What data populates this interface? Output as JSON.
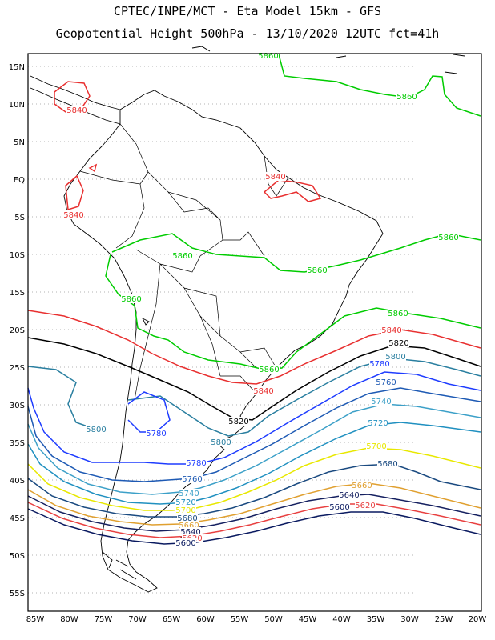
{
  "header": {
    "line1": "CPTEC/INPE/MCT -  Eta Model 15km - GFS",
    "line2": "Geopotential Height 500hPa - 13/10/2020 12UTC fct=41h"
  },
  "axes": {
    "lat_labels": [
      "15N",
      "10N",
      "5N",
      "EQ",
      "5S",
      "10S",
      "15S",
      "20S",
      "25S",
      "30S",
      "35S",
      "40S",
      "45S",
      "50S",
      "55S"
    ],
    "lon_labels": [
      "85W",
      "80W",
      "75W",
      "70W",
      "65W",
      "60W",
      "55W",
      "50W",
      "45W",
      "40W",
      "35W",
      "30W",
      "25W",
      "20W"
    ]
  },
  "colors": {
    "c5860": "#00cc00",
    "c5840": "#e83030",
    "c5820": "#000000",
    "c5800": "#2a7fa0",
    "c5780": "#1e3cff",
    "c5760": "#1e5ab4",
    "c5740": "#3ca0c8",
    "c5720": "#2090c0",
    "c5700": "#e8e800",
    "c5680": "#1a4a80",
    "c5660": "#e0a030",
    "c5640": "#152060",
    "c5620": "#e84040",
    "c5600": "#0a1a60",
    "land": "#000000",
    "grid": "#9a9a9a"
  },
  "contour_labels": [
    {
      "text": "5860",
      "color": "#00cc00"
    },
    {
      "text": "5860",
      "color": "#00cc00"
    },
    {
      "text": "5860",
      "color": "#00cc00"
    },
    {
      "text": "5860",
      "color": "#00cc00"
    },
    {
      "text": "5860",
      "color": "#00cc00"
    },
    {
      "text": "5860",
      "color": "#00cc00"
    },
    {
      "text": "5860",
      "color": "#00cc00"
    },
    {
      "text": "5860",
      "color": "#00cc00"
    },
    {
      "text": "5840",
      "color": "#e83030"
    },
    {
      "text": "5840",
      "color": "#e83030"
    },
    {
      "text": "5840",
      "color": "#e83030"
    },
    {
      "text": "5840",
      "color": "#e83030"
    },
    {
      "text": "5840",
      "color": "#e83030"
    },
    {
      "text": "5820",
      "color": "#000000"
    },
    {
      "text": "5820",
      "color": "#000000"
    },
    {
      "text": "5800",
      "color": "#2a7fa0"
    },
    {
      "text": "5800",
      "color": "#2a7fa0"
    },
    {
      "text": "5800",
      "color": "#2a7fa0"
    },
    {
      "text": "5780",
      "color": "#1e3cff"
    },
    {
      "text": "5780",
      "color": "#1e3cff"
    },
    {
      "text": "5780",
      "color": "#1e3cff"
    },
    {
      "text": "5760",
      "color": "#1e5ab4"
    },
    {
      "text": "5760",
      "color": "#1e5ab4"
    },
    {
      "text": "5740",
      "color": "#3ca0c8"
    },
    {
      "text": "5740",
      "color": "#3ca0c8"
    },
    {
      "text": "5720",
      "color": "#2090c0"
    },
    {
      "text": "5720",
      "color": "#2090c0"
    },
    {
      "text": "5700",
      "color": "#e8e800"
    },
    {
      "text": "5700",
      "color": "#e8e800"
    },
    {
      "text": "5680",
      "color": "#1a4a80"
    },
    {
      "text": "5680",
      "color": "#1a4a80"
    },
    {
      "text": "5660",
      "color": "#e0a030"
    },
    {
      "text": "5660",
      "color": "#e0a030"
    },
    {
      "text": "5640",
      "color": "#152060"
    },
    {
      "text": "5640",
      "color": "#152060"
    },
    {
      "text": "5620",
      "color": "#e84040"
    },
    {
      "text": "5620",
      "color": "#e84040"
    },
    {
      "text": "5600",
      "color": "#0a1a60"
    },
    {
      "text": "5600",
      "color": "#0a1a60"
    }
  ]
}
